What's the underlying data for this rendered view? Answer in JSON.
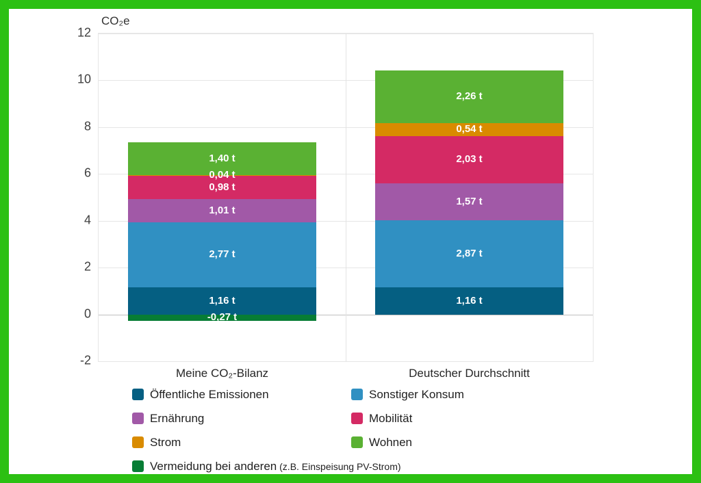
{
  "frame": {
    "border_color": "#2cc013",
    "panel_background": "#ffffff"
  },
  "chart_data": {
    "type": "bar",
    "stacked": true,
    "title": "CO₂e",
    "categories": [
      "Meine CO₂-Bilanz",
      "Deutscher Durchschnitt"
    ],
    "series": [
      {
        "name": "Öffentliche Emissionen",
        "color": "#055f82",
        "values": [
          1.16,
          1.16
        ],
        "labels": [
          "1,16 t",
          "1,16 t"
        ]
      },
      {
        "name": "Sonstiger Konsum",
        "color": "#3090c2",
        "values": [
          2.77,
          2.87
        ],
        "labels": [
          "2,77 t",
          "2,87 t"
        ]
      },
      {
        "name": "Ernährung",
        "color": "#a159a7",
        "values": [
          1.01,
          1.57
        ],
        "labels": [
          "1,01 t",
          "1,57 t"
        ]
      },
      {
        "name": "Mobilität",
        "color": "#d42a64",
        "values": [
          0.98,
          2.03
        ],
        "labels": [
          "0,98 t",
          "2,03 t"
        ]
      },
      {
        "name": "Strom",
        "color": "#d98b00",
        "values": [
          0.04,
          0.54
        ],
        "labels": [
          "0,04 t",
          "0,54 t"
        ]
      },
      {
        "name": "Wohnen",
        "color": "#5ab133",
        "values": [
          1.4,
          2.26
        ],
        "labels": [
          "1,40 t",
          "2,26 t"
        ]
      },
      {
        "name": "Vermeidung bei anderen",
        "color": "#077d35",
        "values": [
          -0.27,
          0
        ],
        "labels": [
          "-0,27 t",
          ""
        ]
      }
    ],
    "ylim": [
      -2,
      12
    ],
    "yticks": [
      12,
      10,
      8,
      6,
      4,
      2,
      0,
      -2
    ],
    "grid": true,
    "legend_position": "bottom",
    "unit": "t"
  },
  "legend": {
    "items": [
      {
        "label": "Öffentliche Emissionen",
        "suffix": "",
        "color": "#055f82",
        "full_width": false
      },
      {
        "label": "Sonstiger Konsum",
        "suffix": "",
        "color": "#3090c2",
        "full_width": false
      },
      {
        "label": "Ernährung",
        "suffix": "",
        "color": "#a159a7",
        "full_width": false
      },
      {
        "label": "Mobilität",
        "suffix": "",
        "color": "#d42a64",
        "full_width": false
      },
      {
        "label": "Strom",
        "suffix": "",
        "color": "#d98b00",
        "full_width": false
      },
      {
        "label": "Wohnen",
        "suffix": "",
        "color": "#5ab133",
        "full_width": false
      },
      {
        "label": "Vermeidung bei anderen",
        "suffix": "(z.B. Einspeisung PV-Strom)",
        "color": "#077d35",
        "full_width": true
      }
    ]
  }
}
